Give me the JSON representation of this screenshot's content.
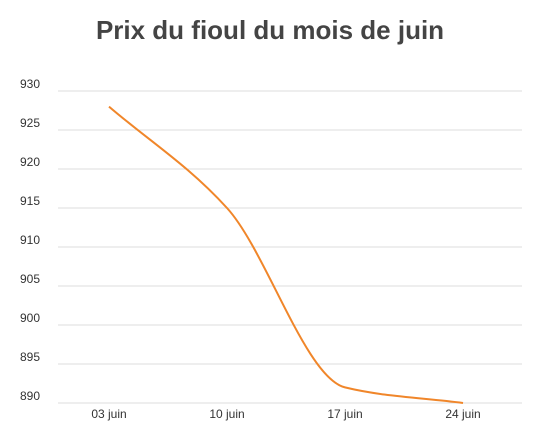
{
  "chart_data": {
    "type": "line",
    "title": "Prix du fioul du mois de juin",
    "categories": [
      "03 juin",
      "10 juin",
      "17 juin",
      "24 juin"
    ],
    "values": [
      928,
      915,
      892,
      890
    ],
    "color": "#f0862a",
    "ylim": [
      890,
      930
    ],
    "yticks": [
      890,
      895,
      900,
      905,
      910,
      915,
      920,
      925,
      930
    ],
    "grid": true
  }
}
